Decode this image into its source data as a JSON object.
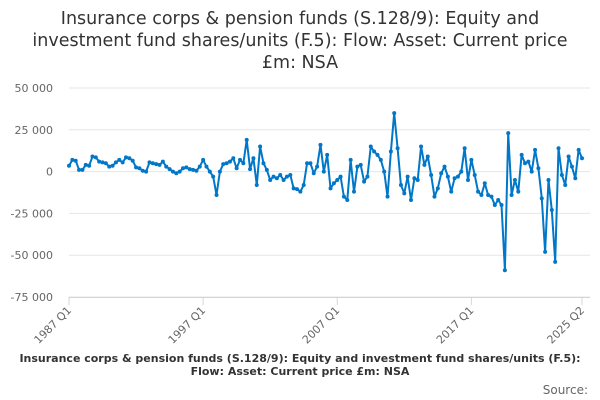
{
  "chart_data": {
    "type": "line",
    "title": "Insurance corps & pension funds (S.128/9): Equity and investment fund shares/units (F.5): Flow: Asset: Current price £m: NSA",
    "xlabel": "",
    "ylabel": "",
    "ylim": [
      -75000,
      50000
    ],
    "y_ticks": [
      "50 000",
      "25 000",
      "0",
      "-25 000",
      "-50 000",
      "-75 000"
    ],
    "y_tick_values": [
      50000,
      25000,
      0,
      -25000,
      -50000,
      -75000
    ],
    "x_ticks": [
      "1987 Q1",
      "1997 Q1",
      "2007 Q1",
      "2017 Q1",
      "2025 Q2"
    ],
    "x_range": [
      "1987 Q1",
      "2025 Q2"
    ],
    "grid": "horizontal",
    "legend_position": "bottom",
    "color": "#0077c8",
    "series": [
      {
        "name": "Insurance corps & pension funds (S.128/9): Equity and investment fund shares/units (F.5): Flow: Asset: Current price £m: NSA",
        "start": "1987 Q1",
        "frequency": "quarterly",
        "values": [
          3500,
          7000,
          6500,
          1000,
          1000,
          4000,
          3500,
          9000,
          8500,
          6000,
          5500,
          5000,
          3000,
          3500,
          5500,
          7000,
          5500,
          8500,
          8000,
          6500,
          2500,
          2000,
          500,
          0,
          5500,
          5000,
          4500,
          4000,
          6000,
          3000,
          1500,
          0,
          -1000,
          0,
          2000,
          2500,
          1500,
          1000,
          500,
          3000,
          7000,
          3000,
          0,
          -3000,
          -14000,
          0,
          4500,
          5000,
          6000,
          8000,
          2000,
          7000,
          5000,
          19000,
          1500,
          8000,
          -8000,
          15000,
          5000,
          1000,
          -5000,
          -3000,
          -4000,
          -2000,
          -5000,
          -3000,
          -2000,
          -10000,
          -10500,
          -12000,
          -8000,
          5000,
          5000,
          -1000,
          3000,
          16000,
          0,
          10000,
          -10000,
          -7000,
          -5000,
          -3000,
          -15000,
          -17000,
          7000,
          -12000,
          3000,
          4000,
          -6000,
          -3000,
          15000,
          12000,
          10000,
          7000,
          0,
          -15000,
          12000,
          35000,
          14000,
          -8000,
          -13000,
          -3000,
          -17000,
          -4000,
          -5000,
          15000,
          4000,
          9000,
          -2000,
          -15000,
          -10000,
          -1000,
          3000,
          -3000,
          -12000,
          -4000,
          -3000,
          0,
          14000,
          -5000,
          7000,
          -2000,
          -12000,
          -14000,
          -7000,
          -14000,
          -15000,
          -20000,
          -17000,
          -20000,
          -59000,
          23000,
          -14000,
          -5000,
          -12000,
          10000,
          5000,
          6000,
          0,
          13000,
          2000,
          -16000,
          -48000,
          -5000,
          -23000,
          -54000,
          14000,
          -2000,
          -8000,
          9000,
          3000,
          -4000,
          13000,
          8000
        ]
      }
    ],
    "source_label": "Source:"
  }
}
